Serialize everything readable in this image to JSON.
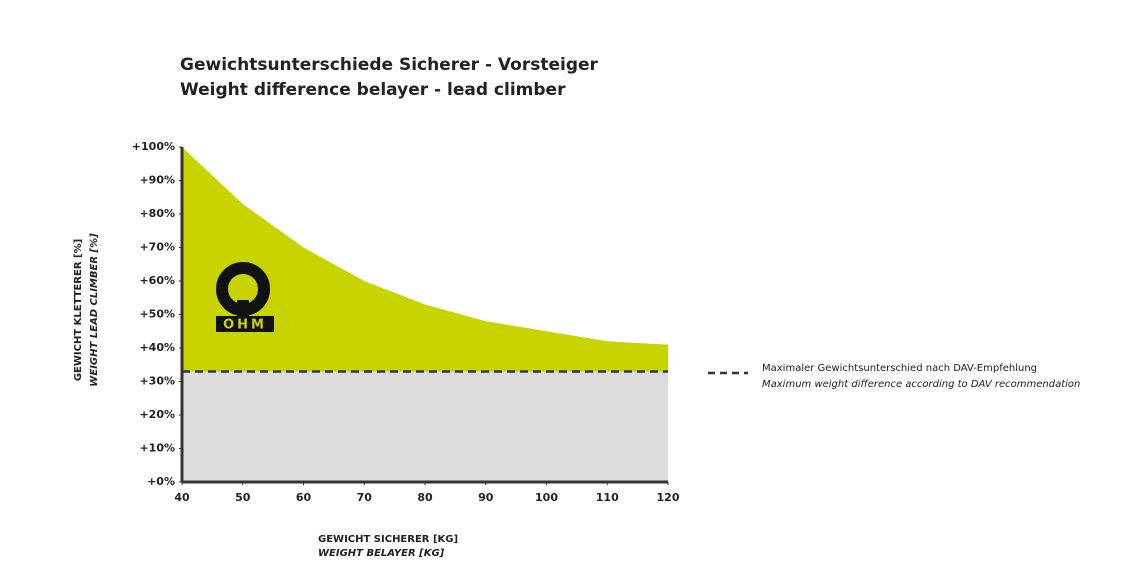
{
  "chart_data": {
    "type": "area",
    "title": "Gewichtsunterschiede Sicherer - Vorsteiger",
    "subtitle": "Weight difference belayer - lead climber",
    "xlabel": "GEWICHT SICHERER [KG]",
    "xlabel_en": "WEIGHT BELAYER [KG]",
    "ylabel": "GEWICHT KLETTERER [%]",
    "ylabel_en": "WEIGHT LEAD CLIMBER [%]",
    "x": [
      40,
      50,
      60,
      70,
      80,
      90,
      100,
      110,
      120
    ],
    "values": [
      100,
      83,
      70,
      60,
      53,
      48,
      45,
      42,
      41
    ],
    "color": "#c8d400",
    "reference_line": {
      "value": 33,
      "color": "#dcdcdc",
      "label": "Maximaler Gewichtsunterschied nach DAV-Empfehlung",
      "label_en": "Maximum weight  difference according to DAV recommendation"
    },
    "xlim": [
      40,
      120
    ],
    "xticks": [
      40,
      50,
      60,
      70,
      80,
      90,
      100,
      110,
      120
    ],
    "ylim": [
      0,
      100
    ],
    "yticks": [
      {
        "value": 0,
        "label": "+0%"
      },
      {
        "value": 10,
        "label": "+10%"
      },
      {
        "value": 20,
        "label": "+20%"
      },
      {
        "value": 30,
        "label": "+30%"
      },
      {
        "value": 40,
        "label": "+40%"
      },
      {
        "value": 50,
        "label": "+50%"
      },
      {
        "value": 60,
        "label": "+60%"
      },
      {
        "value": 70,
        "label": "+70%"
      },
      {
        "value": 80,
        "label": "+80%"
      },
      {
        "value": 90,
        "label": "+90%"
      },
      {
        "value": 100,
        "label": "+100%"
      }
    ],
    "logo": "OHM"
  }
}
